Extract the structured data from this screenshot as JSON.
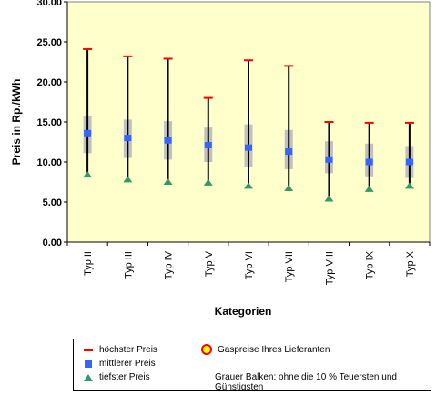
{
  "chart_data": {
    "type": "box",
    "ylabel": "Preis in Rp./kWh",
    "xlabel": "Kategorien",
    "ylim": [
      0,
      30
    ],
    "yticks": [
      "0.00",
      "5.00",
      "10.00",
      "15.00",
      "20.00",
      "25.00",
      "30.00"
    ],
    "grid": false,
    "categories": [
      "Typ II",
      "Typ III",
      "Typ IV",
      "Typ V",
      "Typ VI",
      "Typ VII",
      "Typ VIII",
      "Typ IX",
      "Typ X"
    ],
    "series": [
      {
        "name": "höchster Preis",
        "values": [
          24.1,
          23.2,
          22.9,
          18.0,
          22.7,
          22.0,
          15.0,
          14.9,
          14.9
        ]
      },
      {
        "name": "mittlerer Preis",
        "values": [
          13.6,
          13.0,
          12.7,
          12.1,
          11.8,
          11.3,
          10.3,
          10.0,
          10.0
        ]
      },
      {
        "name": "tiefster Preis",
        "values": [
          8.4,
          7.8,
          7.5,
          7.4,
          7.0,
          6.7,
          5.4,
          6.6,
          7.0
        ]
      },
      {
        "name": "box_upper",
        "values": [
          15.8,
          15.3,
          15.1,
          14.3,
          14.7,
          14.0,
          12.6,
          12.3,
          12.0
        ]
      },
      {
        "name": "box_lower",
        "values": [
          11.1,
          10.5,
          10.3,
          10.0,
          9.4,
          9.1,
          8.6,
          8.2,
          8.0
        ]
      }
    ],
    "legend": {
      "position": "bottom",
      "items": [
        "höchster Preis",
        "mittlerer Preis",
        "tiefster Preis",
        "Gaspreise Ihres Lieferanten"
      ],
      "note": "Grauer Balken: ohne die 10 % Teuersten und Günstigsten"
    },
    "colors": {
      "plot_bg": "#ffffcc",
      "max": "#ff0000",
      "mean": "#3366ff",
      "min": "#339966",
      "box": "#c0c0c0",
      "whisker": "#000000"
    }
  }
}
